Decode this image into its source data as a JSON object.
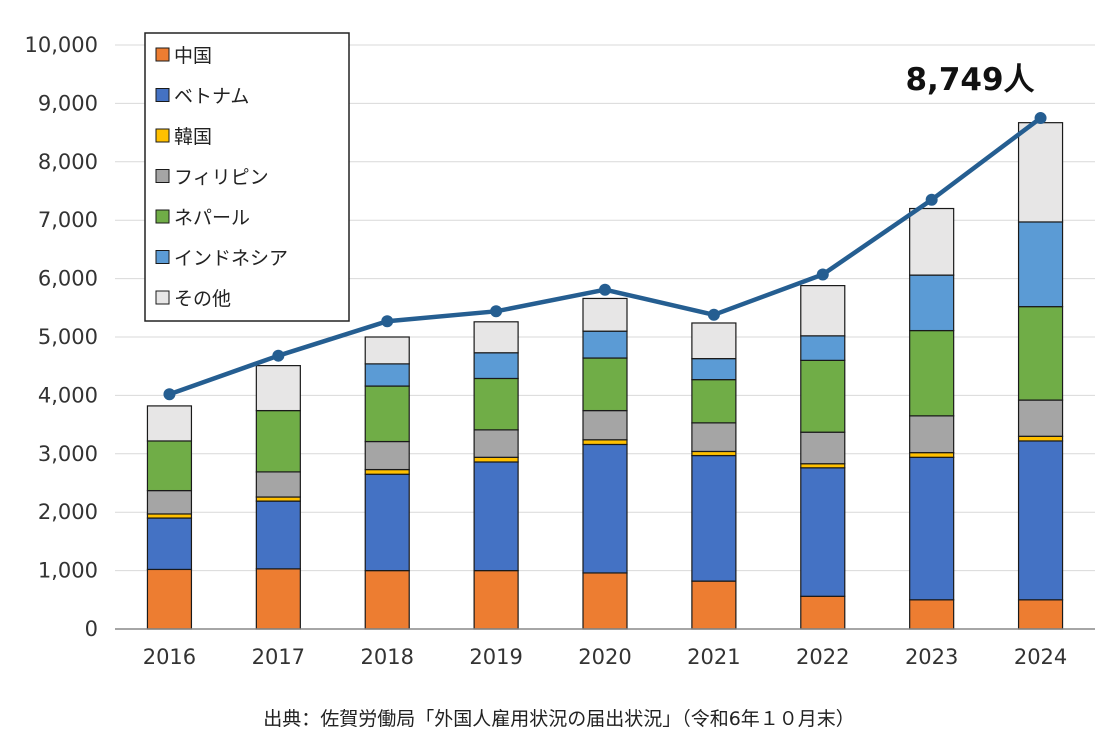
{
  "chart_data": {
    "type": "bar",
    "stacked": true,
    "categories": [
      "2016",
      "2017",
      "2018",
      "2019",
      "2020",
      "2021",
      "2022",
      "2023",
      "2024"
    ],
    "series": [
      {
        "name": "中国",
        "color": "#ED7D31",
        "values": [
          1020,
          1030,
          1000,
          1000,
          960,
          820,
          560,
          500,
          500
        ]
      },
      {
        "name": "ベトナム",
        "color": "#4472C4",
        "values": [
          880,
          1160,
          1650,
          1860,
          2200,
          2150,
          2200,
          2440,
          2720
        ]
      },
      {
        "name": "韓国",
        "color": "#FFC000",
        "values": [
          70,
          70,
          80,
          80,
          80,
          70,
          70,
          80,
          80
        ]
      },
      {
        "name": "フィリピン",
        "color": "#A5A5A5",
        "values": [
          400,
          430,
          480,
          470,
          500,
          490,
          540,
          630,
          620
        ]
      },
      {
        "name": "ネパール",
        "color": "#70AD47",
        "values": [
          850,
          1050,
          950,
          880,
          900,
          740,
          1230,
          1460,
          1600
        ]
      },
      {
        "name": "インドネシア",
        "color": "#5B9BD5",
        "values": [
          0,
          0,
          380,
          440,
          460,
          360,
          420,
          950,
          1450
        ]
      },
      {
        "name": "その他",
        "color": "#E7E6E6",
        "values": [
          600,
          770,
          460,
          530,
          560,
          610,
          860,
          1140,
          1700
        ]
      }
    ],
    "total_line": {
      "color": "#255E91",
      "values": [
        4020,
        4680,
        5270,
        5440,
        5810,
        5380,
        6070,
        7350,
        8749
      ]
    },
    "ylim": [
      0,
      10000
    ],
    "yticks": [
      "0",
      "1,000",
      "2,000",
      "3,000",
      "4,000",
      "5,000",
      "6,000",
      "7,000",
      "8,000",
      "9,000",
      "10,000"
    ],
    "grid": true,
    "legend_position": "top-left",
    "annotation": "8,749人"
  },
  "source_text": "出典：佐賀労働局「外国人雇用状況の届出状況」（令和6年１０月末）"
}
